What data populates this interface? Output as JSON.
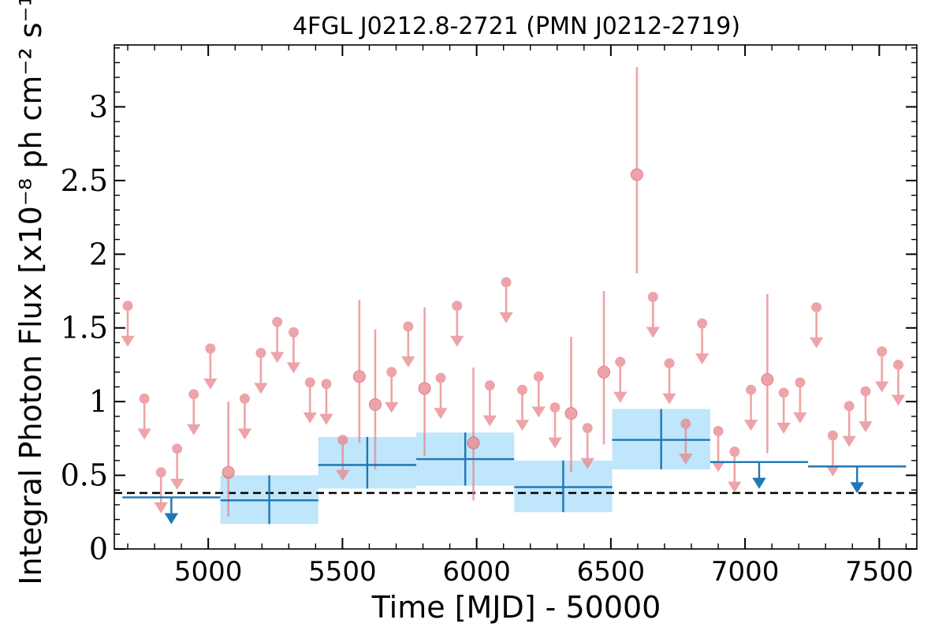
{
  "chart_data": {
    "type": "scatter",
    "title": "4FGL J0212.8-2721 (PMN J0212-2719)",
    "xlabel": "Time [MJD] - 50000",
    "ylabel": "Integral Photon Flux [x10⁻⁸ ph cm⁻² s⁻¹]",
    "xlim": [
      4650,
      7640
    ],
    "ylim": [
      0,
      3.42
    ],
    "x_ticks": [
      5000,
      5500,
      6000,
      6500,
      7000,
      7500
    ],
    "x_tick_labels": [
      "5000",
      "5500",
      "6000",
      "6500",
      "7000",
      "7500"
    ],
    "y_ticks": [
      0,
      0.5,
      1,
      1.5,
      2,
      2.5,
      3
    ],
    "y_tick_labels": [
      "0",
      "0.5",
      "1",
      "1.5",
      "2",
      "2.5",
      "3"
    ],
    "grid": false,
    "colors": {
      "short_bins": "#e8868c",
      "long_bins": "#1f77b4",
      "long_bin_band": "#bfe6fb",
      "reference_line": "#000000"
    },
    "reference_line": {
      "y": 0.38,
      "style": "dashed"
    },
    "series": [
      {
        "role": "short-time-bin detections",
        "points": [
          {
            "x": 5075,
            "y": 0.52,
            "ylo": 0.22,
            "yhi": 1.0
          },
          {
            "x": 5563,
            "y": 1.17,
            "ylo": 0.72,
            "yhi": 1.69
          },
          {
            "x": 5622,
            "y": 0.98,
            "ylo": 0.54,
            "yhi": 1.49
          },
          {
            "x": 5806,
            "y": 1.09,
            "ylo": 0.63,
            "yhi": 1.64
          },
          {
            "x": 5988,
            "y": 0.72,
            "ylo": 0.33,
            "yhi": 1.23
          },
          {
            "x": 6352,
            "y": 0.92,
            "ylo": 0.52,
            "yhi": 1.44
          },
          {
            "x": 6474,
            "y": 1.2,
            "ylo": 0.71,
            "yhi": 1.75
          },
          {
            "x": 6597,
            "y": 2.54,
            "ylo": 1.87,
            "yhi": 3.27
          },
          {
            "x": 7083,
            "y": 1.15,
            "ylo": 0.65,
            "yhi": 1.73
          }
        ]
      },
      {
        "role": "short-time-bin upper limits",
        "points": [
          {
            "x": 4700,
            "y": 1.65
          },
          {
            "x": 4762,
            "y": 1.02
          },
          {
            "x": 4824,
            "y": 0.52
          },
          {
            "x": 4884,
            "y": 0.68
          },
          {
            "x": 4946,
            "y": 1.05
          },
          {
            "x": 5008,
            "y": 1.36
          },
          {
            "x": 5136,
            "y": 1.02
          },
          {
            "x": 5196,
            "y": 1.33
          },
          {
            "x": 5257,
            "y": 1.54
          },
          {
            "x": 5318,
            "y": 1.47
          },
          {
            "x": 5379,
            "y": 1.13
          },
          {
            "x": 5440,
            "y": 1.12
          },
          {
            "x": 5501,
            "y": 0.74
          },
          {
            "x": 5683,
            "y": 1.2
          },
          {
            "x": 5745,
            "y": 1.51
          },
          {
            "x": 5866,
            "y": 1.16
          },
          {
            "x": 5927,
            "y": 1.65
          },
          {
            "x": 6049,
            "y": 1.11
          },
          {
            "x": 6110,
            "y": 1.81
          },
          {
            "x": 6170,
            "y": 1.08
          },
          {
            "x": 6231,
            "y": 1.17
          },
          {
            "x": 6292,
            "y": 0.96
          },
          {
            "x": 6413,
            "y": 0.82
          },
          {
            "x": 6535,
            "y": 1.27
          },
          {
            "x": 6657,
            "y": 1.71
          },
          {
            "x": 6718,
            "y": 1.26
          },
          {
            "x": 6779,
            "y": 0.85
          },
          {
            "x": 6840,
            "y": 1.53
          },
          {
            "x": 6900,
            "y": 0.8
          },
          {
            "x": 6961,
            "y": 0.66
          },
          {
            "x": 7022,
            "y": 1.08
          },
          {
            "x": 7144,
            "y": 1.06
          },
          {
            "x": 7205,
            "y": 1.13
          },
          {
            "x": 7266,
            "y": 1.64
          },
          {
            "x": 7327,
            "y": 0.77
          },
          {
            "x": 7388,
            "y": 0.97
          },
          {
            "x": 7449,
            "y": 1.07
          },
          {
            "x": 7510,
            "y": 1.34
          },
          {
            "x": 7571,
            "y": 1.25
          }
        ]
      },
      {
        "role": "long-time-bin detections",
        "bins": [
          {
            "x0": 5045,
            "x1": 5410,
            "y": 0.33,
            "ylo": 0.17,
            "yhi": 0.5,
            "band_lo": 0.17,
            "band_hi": 0.5
          },
          {
            "x0": 5410,
            "x1": 5775,
            "y": 0.57,
            "ylo": 0.41,
            "yhi": 0.76,
            "band_lo": 0.41,
            "band_hi": 0.76
          },
          {
            "x0": 5775,
            "x1": 6140,
            "y": 0.61,
            "ylo": 0.43,
            "yhi": 0.79,
            "band_lo": 0.43,
            "band_hi": 0.79
          },
          {
            "x0": 6140,
            "x1": 6505,
            "y": 0.42,
            "ylo": 0.25,
            "yhi": 0.6,
            "band_lo": 0.25,
            "band_hi": 0.6
          },
          {
            "x0": 6505,
            "x1": 6870,
            "y": 0.74,
            "ylo": 0.54,
            "yhi": 0.95,
            "band_lo": 0.54,
            "band_hi": 0.95
          }
        ]
      },
      {
        "role": "long-time-bin upper limits",
        "bins": [
          {
            "x0": 4680,
            "x1": 5045,
            "y": 0.35
          },
          {
            "x0": 6870,
            "x1": 7235,
            "y": 0.59
          },
          {
            "x0": 7235,
            "x1": 7600,
            "y": 0.56
          }
        ]
      }
    ]
  }
}
